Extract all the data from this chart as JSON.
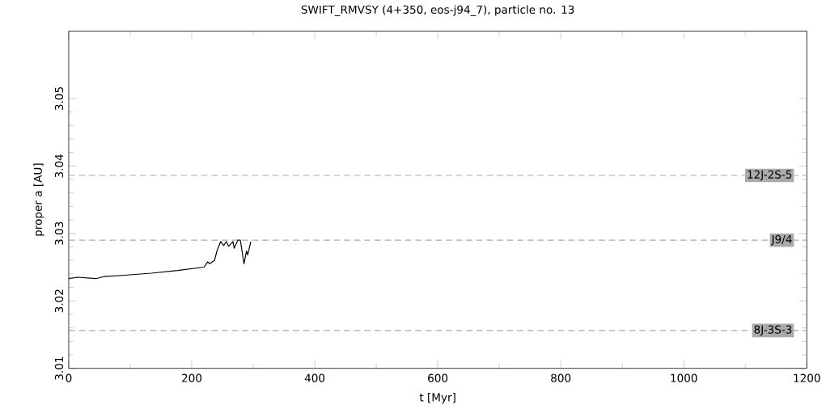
{
  "chart_data": {
    "type": "line",
    "title": "SWIFT_RMVSY (4+350, eos-j94_7), particle no. 13",
    "xlabel": "t [Myr]",
    "ylabel": "proper a [AU]",
    "x": [
      0,
      14.5,
      44,
      57,
      91,
      134,
      177,
      220,
      226,
      229,
      237,
      241,
      247,
      252,
      256,
      260,
      267,
      269,
      275,
      279,
      285,
      289,
      291,
      296
    ],
    "series": [
      {
        "color": "#000000",
        "values": [
          3.0233,
          3.0235,
          3.0233,
          3.0236,
          3.0238,
          3.0241,
          3.0245,
          3.025,
          3.0258,
          3.0255,
          3.026,
          3.0274,
          3.0288,
          3.0282,
          3.0288,
          3.0281,
          3.0288,
          3.0278,
          3.029,
          3.029,
          3.0255,
          3.0274,
          3.0268,
          3.0288
        ]
      }
    ],
    "xlim": [
      0,
      1200
    ],
    "ylim": [
      3.01,
      3.06
    ],
    "xticks": [
      0,
      200,
      400,
      600,
      800,
      1000,
      1200
    ],
    "yticks": [
      3.01,
      3.02,
      3.03,
      3.04,
      3.05
    ],
    "ref_lines": [
      {
        "axis": "y",
        "value": 3.0386,
        "label": "12J-2S-5",
        "color": "#aaaaaa",
        "line_style": "dashed"
      },
      {
        "axis": "y",
        "value": 3.029,
        "label": "J9/4",
        "color": "#aaaaaa",
        "line_style": "dashed"
      },
      {
        "axis": "y",
        "value": 3.0156,
        "label": "8J-3S-3",
        "color": "#aaaaaa",
        "line_style": "dashed"
      }
    ]
  }
}
